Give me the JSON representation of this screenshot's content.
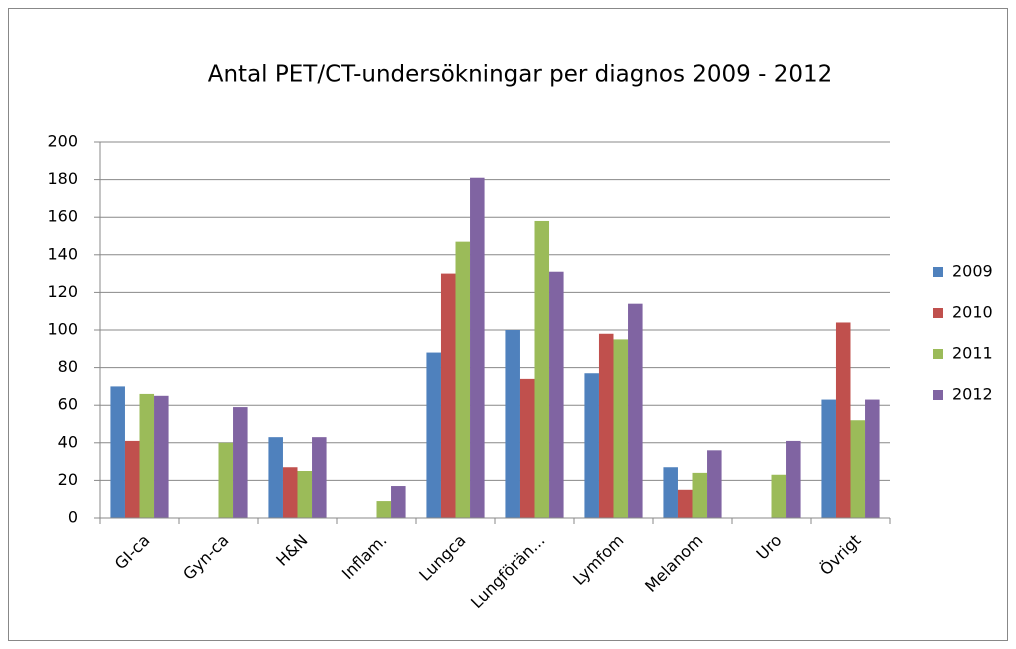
{
  "chart_data": {
    "type": "bar",
    "title": "Antal PET/CT-undersökningar per diagnos 2009 - 2012",
    "categories": [
      "GI-ca",
      "Gyn-ca",
      "H&N",
      "Inflam.",
      "Lungca",
      "Lungförän...",
      "Lymfom",
      "Melanom",
      "Uro",
      "Övrigt"
    ],
    "series": [
      {
        "name": "2009",
        "color": "#4f81bd",
        "values": [
          70,
          0,
          43,
          0,
          88,
          100,
          77,
          27,
          0,
          63
        ]
      },
      {
        "name": "2010",
        "color": "#c0504d",
        "values": [
          41,
          0,
          27,
          0,
          130,
          74,
          98,
          15,
          0,
          104
        ]
      },
      {
        "name": "2011",
        "color": "#9bbb59",
        "values": [
          66,
          40,
          25,
          9,
          147,
          158,
          95,
          24,
          23,
          52
        ]
      },
      {
        "name": "2012",
        "color": "#8064a2",
        "values": [
          65,
          59,
          43,
          17,
          181,
          131,
          114,
          36,
          41,
          63
        ]
      }
    ],
    "ylim": [
      0,
      200
    ],
    "yticks": [
      0,
      20,
      40,
      60,
      80,
      100,
      120,
      140,
      160,
      180,
      200
    ],
    "grid": true,
    "legend": "right"
  }
}
